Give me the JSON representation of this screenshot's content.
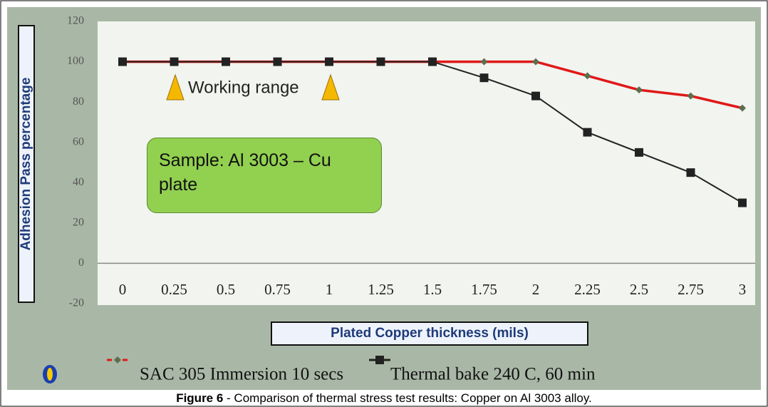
{
  "chart_data": {
    "type": "line",
    "categories": [
      "0",
      "0.25",
      "0.5",
      "0.75",
      "1",
      "1.25",
      "1.5",
      "1.75",
      "2",
      "2.25",
      "2.5",
      "2.75",
      "3"
    ],
    "series": [
      {
        "name": "SAC 305 Immersion 10 secs",
        "color": "#e01818",
        "marker": "diamond",
        "values": [
          100,
          100,
          100,
          100,
          100,
          100,
          100,
          100,
          100,
          93,
          86,
          83,
          77
        ]
      },
      {
        "name": "Thermal bake 240 C, 60 min",
        "color": "#222222",
        "marker": "square",
        "values": [
          100,
          100,
          100,
          100,
          100,
          100,
          100,
          92,
          83,
          65,
          55,
          45,
          30
        ]
      }
    ],
    "ylim": [
      -20,
      120
    ],
    "yticks": [
      -20,
      0,
      20,
      40,
      60,
      80,
      100,
      120
    ],
    "y_label": "Adhesion Pass percentage",
    "x_label": "Plated Copper thickness (mils)",
    "annotations": [
      "Working range",
      "Sample: Al 3003 – Cu plate"
    ]
  },
  "caption": {
    "label": "Figure 6",
    "text": " - Comparison of thermal stress test results: Copper on Al 3003 alloy."
  }
}
